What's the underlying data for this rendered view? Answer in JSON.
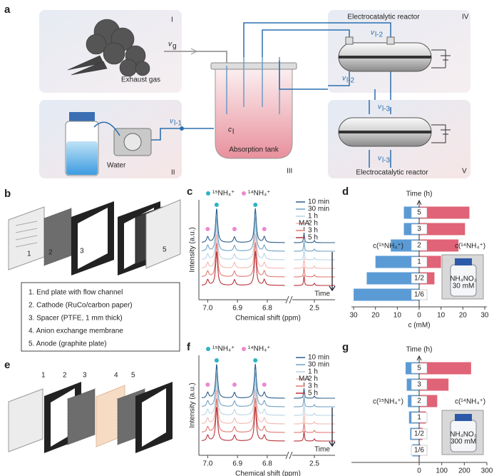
{
  "panel_a": {
    "label": "a",
    "box_labels": [
      "I",
      "II",
      "III",
      "IV",
      "V"
    ],
    "exhaust": "Exhaust gas",
    "water": "Water",
    "tank": "Absorption tank",
    "reactor_top": "Electrocatalytic reactor",
    "reactor_bottom": "Electrocatalytic reactor",
    "flows": [
      {
        "v": "v",
        "sub": "g"
      },
      {
        "v": "v",
        "sub": "l-1"
      },
      {
        "v": "v",
        "sub": "l-2"
      },
      {
        "v": "v",
        "sub": "l-2"
      },
      {
        "v": "v",
        "sub": "l-3"
      },
      {
        "v": "v",
        "sub": "l-3"
      }
    ],
    "conc": {
      "v": "c",
      "sub": "l"
    }
  },
  "panel_b": {
    "label": "b",
    "callouts": [
      "1",
      "2",
      "3",
      "5"
    ],
    "legend": [
      "1. End plate with flow channel",
      "2. Cathode (RuCo/carbon paper)",
      "3. Spacer (PTFE, 1 mm thick)",
      "4. Anion exchange membrane",
      "5. Anode (graphite plate)"
    ]
  },
  "panel_e": {
    "label": "e",
    "callouts": [
      "1",
      "2",
      "3",
      "4",
      "5"
    ]
  },
  "chart_data": [
    {
      "type": "spectrum",
      "label": "c",
      "ylabel": "Intensity (a.u.)",
      "xlabel": "Chemical shift (ppm)",
      "markers": [
        {
          "name": "¹⁵NH₄⁺",
          "color": "#2ab3c6",
          "peaks": [
            6.97,
            6.84
          ]
        },
        {
          "name": "¹⁴NH₄⁺",
          "color": "#ee88d0",
          "peaks": [
            7.0,
            6.91,
            6.81
          ]
        }
      ],
      "annotation": "MA",
      "annotation_shift": 2.56,
      "arrow_label": "Time",
      "series": [
        {
          "name": "10 min",
          "color": "#2b5d8a"
        },
        {
          "name": "30 min",
          "color": "#6fa1c4"
        },
        {
          "name": "1 h",
          "color": "#b8d4e6"
        },
        {
          "name": "2 h",
          "color": "#f2b8b0"
        },
        {
          "name": "3 h",
          "color": "#e07a70"
        },
        {
          "name": "5 h",
          "color": "#b8333a"
        }
      ],
      "xlim": [
        7.02,
        6.74
      ],
      "xlim2": [
        2.62,
        2.38
      ],
      "xticks": [
        {
          "value": 7,
          "label": "7.0"
        },
        6.9,
        6.8,
        2.5
      ]
    },
    {
      "type": "butterfly",
      "label": "d",
      "ylabel": "Time (h)",
      "xlabel": "c (mM)",
      "categories": [
        "5",
        "3",
        "2",
        "1",
        "1/2",
        "1/6"
      ],
      "series": [
        {
          "name": "c(¹⁵NH₄⁺)",
          "color": "#5b9bd5",
          "side": "left",
          "values": [
            7,
            7,
            13,
            20,
            24,
            30
          ]
        },
        {
          "name": "c(¹⁴NH₄⁺)",
          "color": "#e06377",
          "side": "right",
          "values": [
            23,
            21,
            18,
            10,
            7,
            0
          ]
        }
      ],
      "xlim": [
        0,
        31
      ],
      "xticks_left": [
        30,
        20,
        10
      ],
      "xticks_right": [
        0,
        10,
        20,
        30
      ],
      "inset": [
        "NH₄NO₃",
        "30 mM"
      ]
    },
    {
      "type": "spectrum",
      "label": "f",
      "ylabel": "Intensity (a.u.)",
      "xlabel": "Chemical shift (ppm)",
      "markers": [
        {
          "name": "¹⁵NH₄⁺",
          "color": "#2ab3c6",
          "peaks": [
            6.97,
            6.84
          ]
        },
        {
          "name": "¹⁴NH₄⁺",
          "color": "#ee88d0",
          "peaks": [
            7.0,
            6.91,
            6.81
          ]
        }
      ],
      "annotation": "MA",
      "annotation_shift": 2.56,
      "arrow_label": "Time",
      "series": [
        {
          "name": "10 min",
          "color": "#2b5d8a"
        },
        {
          "name": "30 min",
          "color": "#6fa1c4"
        },
        {
          "name": "1 h",
          "color": "#b8d4e6"
        },
        {
          "name": "2 h",
          "color": "#f2b8b0"
        },
        {
          "name": "3 h",
          "color": "#e07a70"
        },
        {
          "name": "5 h",
          "color": "#b8333a"
        }
      ],
      "xlim": [
        7.02,
        6.74
      ],
      "xlim2": [
        2.62,
        2.38
      ],
      "xticks": [
        {
          "value": 7,
          "label": "7.0"
        },
        6.9,
        6.8,
        2.5
      ]
    },
    {
      "type": "butterfly",
      "label": "g",
      "ylabel": "Time (h)",
      "xlabel": "c (mM)",
      "categories": [
        "5",
        "3",
        "2",
        "1",
        "1/2",
        "1/6"
      ],
      "series": [
        {
          "name": "c(¹⁵NH₄⁺)",
          "color": "#5b9bd5",
          "side": "left",
          "values": [
            60,
            55,
            50,
            45,
            40,
            30
          ]
        },
        {
          "name": "c(¹⁴NH₄⁺)",
          "color": "#e06377",
          "side": "right",
          "values": [
            230,
            130,
            80,
            30,
            15,
            5
          ]
        }
      ],
      "xlim": [
        0,
        300
      ],
      "xticks_left": [],
      "xticks_right": [
        0,
        100,
        200,
        300
      ],
      "inset": [
        "NH₄NO₃",
        "300 mM"
      ]
    }
  ]
}
